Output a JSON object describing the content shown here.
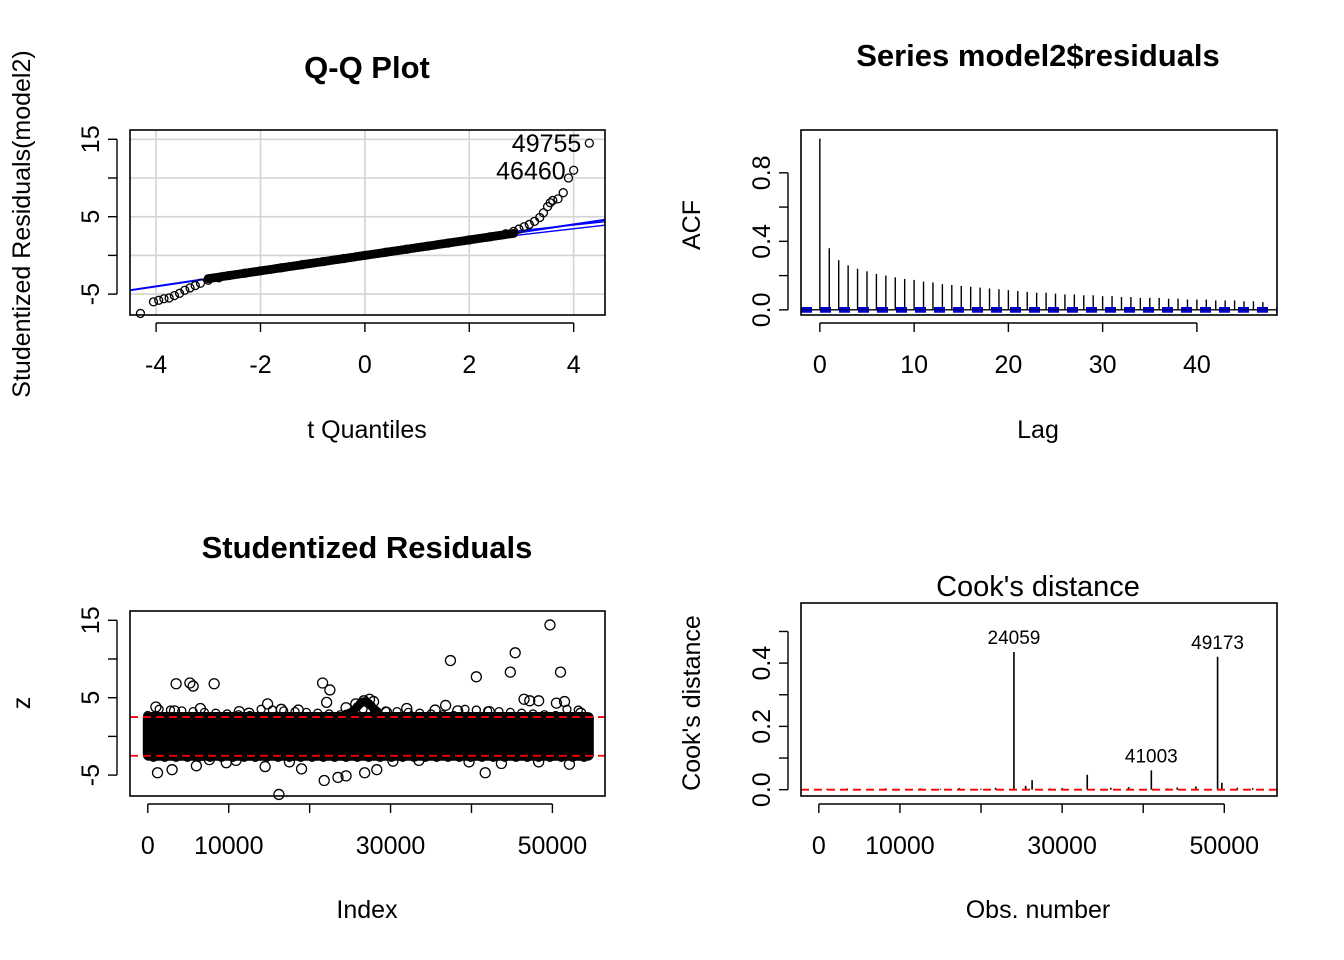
{
  "colors": {
    "ink": "#000000",
    "blue": "#0000ff",
    "darkblue": "#0000cd",
    "red": "#ff0000",
    "grid": "#d3d3d3"
  },
  "chart_data": [
    {
      "id": "qq",
      "type": "scatter",
      "title": "Q-Q Plot",
      "xlabel": "t Quantiles",
      "ylabel": "Studentized Residuals(model2)",
      "xlim": [
        -4.5,
        4.6
      ],
      "ylim": [
        -7.7,
        16.2
      ],
      "xticks": [
        -4,
        -2,
        0,
        2,
        4
      ],
      "yticks": [
        -5,
        0,
        5,
        10,
        15
      ],
      "ytick_labels": [
        "-5",
        "5",
        "15"
      ],
      "grid": true,
      "reference_line": {
        "intercept": 0,
        "slope": 1.0
      },
      "points": [
        [
          -4.3,
          -7.5
        ],
        [
          -4.05,
          -6.0
        ],
        [
          -3.95,
          -5.8
        ],
        [
          -3.85,
          -5.6
        ],
        [
          -3.75,
          -5.5
        ],
        [
          -3.65,
          -5.2
        ],
        [
          -3.55,
          -4.9
        ],
        [
          -3.45,
          -4.5
        ],
        [
          -3.35,
          -4.2
        ],
        [
          -3.25,
          -3.9
        ],
        [
          -3.15,
          -3.6
        ],
        [
          -3.0,
          -3.2
        ],
        [
          -2.8,
          -2.9
        ],
        [
          -2.6,
          -2.6
        ],
        [
          -2.3,
          -2.3
        ],
        [
          -2.0,
          -2.0
        ],
        [
          -1.6,
          -1.6
        ],
        [
          -1.2,
          -1.2
        ],
        [
          -0.8,
          -0.8
        ],
        [
          -0.4,
          -0.4
        ],
        [
          0.0,
          0.0
        ],
        [
          0.4,
          0.4
        ],
        [
          0.8,
          0.8
        ],
        [
          1.2,
          1.2
        ],
        [
          1.6,
          1.6
        ],
        [
          2.0,
          2.0
        ],
        [
          2.4,
          2.4
        ],
        [
          2.7,
          2.8
        ],
        [
          2.85,
          3.1
        ],
        [
          2.95,
          3.4
        ],
        [
          3.05,
          3.7
        ],
        [
          3.15,
          4.0
        ],
        [
          3.25,
          4.4
        ],
        [
          3.35,
          4.9
        ],
        [
          3.42,
          5.5
        ],
        [
          3.5,
          6.3
        ],
        [
          3.55,
          6.8
        ],
        [
          3.6,
          7.1
        ],
        [
          3.7,
          7.3
        ],
        [
          3.8,
          8.1
        ],
        [
          3.9,
          10.0
        ],
        [
          4.0,
          11.0
        ],
        [
          4.3,
          14.5
        ]
      ],
      "labels": [
        {
          "text": "49755",
          "x": 4.3,
          "y": 14.5
        },
        {
          "text": "46460",
          "x": 4.0,
          "y": 11.0
        }
      ]
    },
    {
      "id": "acf",
      "type": "bar",
      "title": "Series  model2$residuals",
      "xlabel": "Lag",
      "ylabel": "ACF",
      "xlim": [
        -2,
        48.5
      ],
      "ylim": [
        -0.03,
        1.05
      ],
      "xticks": [
        0,
        10,
        20,
        30,
        40
      ],
      "yticks": [
        0.0,
        0.4,
        0.8
      ],
      "yticks_minor": [
        0.2,
        0.6
      ],
      "ytick_labels": [
        "0.0",
        "0.4",
        "0.8"
      ],
      "conf_limit": 0.009,
      "lags": [
        0,
        1,
        2,
        3,
        4,
        5,
        6,
        7,
        8,
        9,
        10,
        11,
        12,
        13,
        14,
        15,
        16,
        17,
        18,
        19,
        20,
        21,
        22,
        23,
        24,
        25,
        26,
        27,
        28,
        29,
        30,
        31,
        32,
        33,
        34,
        35,
        36,
        37,
        38,
        39,
        40,
        41,
        42,
        43,
        44,
        45,
        46,
        47
      ],
      "values": [
        1.0,
        0.36,
        0.29,
        0.26,
        0.24,
        0.225,
        0.21,
        0.2,
        0.19,
        0.18,
        0.175,
        0.165,
        0.16,
        0.15,
        0.145,
        0.14,
        0.135,
        0.13,
        0.125,
        0.12,
        0.115,
        0.11,
        0.105,
        0.1,
        0.1,
        0.095,
        0.09,
        0.09,
        0.085,
        0.085,
        0.08,
        0.08,
        0.075,
        0.075,
        0.07,
        0.07,
        0.07,
        0.065,
        0.065,
        0.06,
        0.06,
        0.06,
        0.055,
        0.055,
        0.055,
        0.05,
        0.05,
        0.045
      ]
    },
    {
      "id": "stud",
      "type": "scatter",
      "title": "Studentized Residuals",
      "xlabel": "Index",
      "ylabel": "z",
      "xlim": [
        -2200,
        56500
      ],
      "ylim": [
        -7.7,
        16.2
      ],
      "xticks": [
        0,
        10000,
        20000,
        30000,
        40000,
        50000
      ],
      "xtick_labels": [
        "0",
        "10000",
        "30000",
        "50000"
      ],
      "yticks": [
        -5,
        0,
        5,
        10,
        15
      ],
      "ytick_labels": [
        "-5",
        "5",
        "15"
      ],
      "hlines": [
        2.5,
        -2.5
      ],
      "band": {
        "xmin": 0,
        "xmax": 54500,
        "ymin": -2.5,
        "ymax": 2.5
      },
      "points": [
        [
          3500,
          6.8
        ],
        [
          5200,
          6.9
        ],
        [
          5600,
          6.5
        ],
        [
          8200,
          6.8
        ],
        [
          16200,
          -7.5
        ],
        [
          21600,
          6.9
        ],
        [
          22500,
          6.0
        ],
        [
          37400,
          9.8
        ],
        [
          40600,
          7.7
        ],
        [
          45400,
          10.8
        ],
        [
          44800,
          8.3
        ],
        [
          47200,
          4.6
        ],
        [
          49700,
          14.4
        ],
        [
          51000,
          8.3
        ],
        [
          1200,
          -4.7
        ],
        [
          3000,
          -4.3
        ],
        [
          6000,
          -3.8
        ],
        [
          9700,
          -3.4
        ],
        [
          14500,
          -3.9
        ],
        [
          19000,
          -4.2
        ],
        [
          21800,
          -5.7
        ],
        [
          23500,
          -5.3
        ],
        [
          24500,
          -5.1
        ],
        [
          26800,
          -4.7
        ],
        [
          28300,
          -4.3
        ],
        [
          39700,
          -3.3
        ],
        [
          41700,
          -4.7
        ],
        [
          48300,
          -3.3
        ],
        [
          52100,
          -3.6
        ],
        [
          1000,
          3.8
        ],
        [
          3300,
          3.3
        ],
        [
          6500,
          3.6
        ],
        [
          11300,
          3.2
        ],
        [
          14800,
          4.2
        ],
        [
          18600,
          3.4
        ],
        [
          22100,
          4.4
        ],
        [
          24500,
          3.7
        ],
        [
          25700,
          4.2
        ],
        [
          26700,
          4.6
        ],
        [
          27400,
          4.8
        ],
        [
          27900,
          4.5
        ],
        [
          32000,
          3.6
        ],
        [
          35500,
          3.4
        ],
        [
          36800,
          4.0
        ],
        [
          38300,
          3.3
        ],
        [
          42200,
          3.2
        ],
        [
          46500,
          4.8
        ],
        [
          48300,
          4.6
        ],
        [
          50500,
          4.3
        ],
        [
          51500,
          4.5
        ],
        [
          53500,
          3.0
        ],
        [
          12500,
          3.0
        ],
        [
          16500,
          3.5
        ],
        [
          29500,
          3.1
        ],
        [
          33500,
          -3.1
        ],
        [
          43700,
          -3.5
        ],
        [
          30300,
          -3.2
        ],
        [
          7600,
          -3.0
        ],
        [
          10900,
          -3.1
        ],
        [
          17500,
          -3.3
        ]
      ]
    },
    {
      "id": "cook",
      "type": "bar",
      "title": "Cook's distance",
      "xlabel": "Obs. number",
      "ylabel": "Cook's distance",
      "xlim": [
        -2200,
        56500
      ],
      "ylim": [
        -0.02,
        0.59
      ],
      "xticks": [
        0,
        10000,
        20000,
        30000,
        40000,
        50000
      ],
      "xtick_labels": [
        "0",
        "10000",
        "30000",
        "50000"
      ],
      "yticks": [
        0.0,
        0.2,
        0.4
      ],
      "yticks_minor": [
        0.1,
        0.3,
        0.5
      ],
      "ytick_labels": [
        "0.0",
        "0.2",
        "0.4"
      ],
      "hline": 0.0,
      "bars": [
        [
          24059,
          0.435
        ],
        [
          49173,
          0.42
        ],
        [
          41003,
          0.061
        ],
        [
          33100,
          0.047
        ],
        [
          26300,
          0.03
        ],
        [
          25500,
          0.012
        ],
        [
          49700,
          0.022
        ],
        [
          46500,
          0.01
        ],
        [
          38200,
          0.008
        ],
        [
          44200,
          0.007
        ],
        [
          21800,
          0.006
        ],
        [
          17300,
          0.005
        ],
        [
          12500,
          0.004
        ],
        [
          8200,
          0.004
        ],
        [
          3500,
          0.004
        ],
        [
          30000,
          0.005
        ],
        [
          36000,
          0.006
        ],
        [
          51600,
          0.006
        ],
        [
          53500,
          0.005
        ],
        [
          1000,
          0.003
        ],
        [
          15000,
          0.003
        ],
        [
          20000,
          0.003
        ],
        [
          28500,
          0.004
        ],
        [
          43000,
          0.004
        ]
      ],
      "labels": [
        {
          "text": "24059",
          "x": 24059,
          "y": 0.435
        },
        {
          "text": "49173",
          "x": 49173,
          "y": 0.42
        },
        {
          "text": "41003",
          "x": 41003,
          "y": 0.061
        }
      ]
    }
  ]
}
